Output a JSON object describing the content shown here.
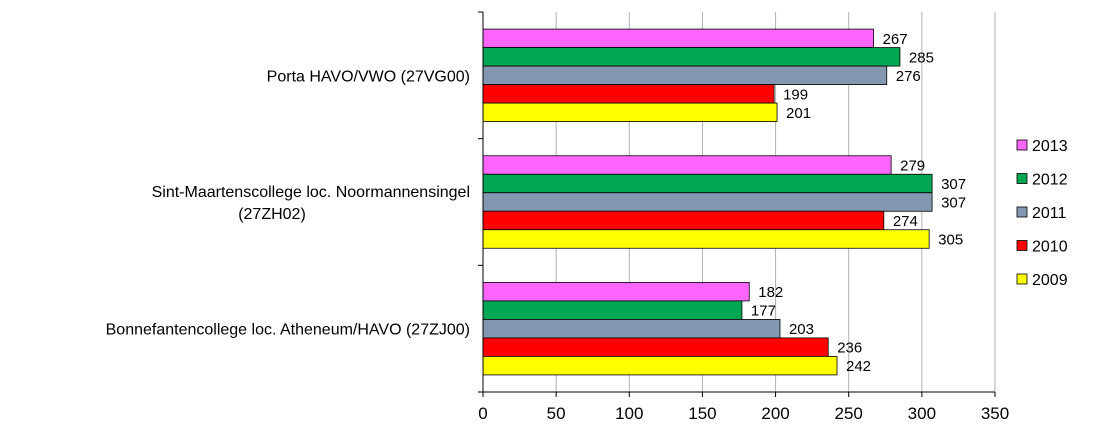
{
  "chart_data": {
    "type": "bar",
    "orientation": "horizontal",
    "categories": [
      "Porta HAVO/VWO (27VG00)",
      "Sint-Maartenscollege loc. Noormannensingel (27ZH02)",
      "Bonnefantencollege loc. Atheneum/HAVO (27ZJ00)"
    ],
    "category_label_lines": [
      [
        "Porta HAVO/VWO (27VG00)"
      ],
      [
        "Sint-Maartenscollege loc. Noormannensingel",
        "(27ZH02)"
      ],
      [
        "Bonnefantencollege loc. Atheneum/HAVO (27ZJ00)"
      ]
    ],
    "series": [
      {
        "name": "2013",
        "color": "#FF66FF",
        "values": [
          267,
          279,
          182
        ]
      },
      {
        "name": "2012",
        "color": "#00A651",
        "values": [
          285,
          307,
          177
        ]
      },
      {
        "name": "2011",
        "color": "#8497B0",
        "values": [
          276,
          307,
          203
        ]
      },
      {
        "name": "2010",
        "color": "#FF0000",
        "values": [
          199,
          274,
          236
        ]
      },
      {
        "name": "2009",
        "color": "#FFFF00",
        "values": [
          201,
          305,
          242
        ]
      }
    ],
    "xlim": [
      0,
      350
    ],
    "xticks": [
      0,
      50,
      100,
      150,
      200,
      250,
      300,
      350
    ],
    "grid": true,
    "legend_position": "right"
  }
}
